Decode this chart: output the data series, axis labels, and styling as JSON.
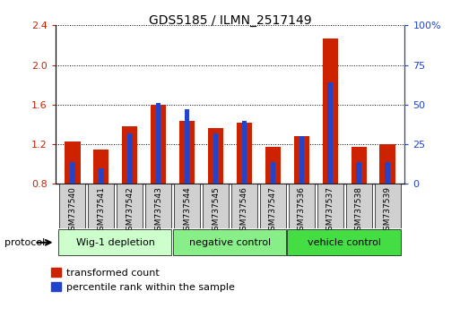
{
  "title": "GDS5185 / ILMN_2517149",
  "samples": [
    "GSM737540",
    "GSM737541",
    "GSM737542",
    "GSM737543",
    "GSM737544",
    "GSM737545",
    "GSM737546",
    "GSM737547",
    "GSM737536",
    "GSM737537",
    "GSM737538",
    "GSM737539"
  ],
  "transformed_count": [
    1.23,
    1.15,
    1.38,
    1.6,
    1.44,
    1.36,
    1.42,
    1.17,
    1.28,
    2.27,
    1.17,
    1.2
  ],
  "percentile_rank_pct": [
    14,
    10,
    32,
    51,
    47,
    32,
    40,
    14,
    30,
    64,
    14,
    14
  ],
  "groups": [
    {
      "label": "Wig-1 depletion",
      "start": 0,
      "end": 4,
      "color": "#ccffcc"
    },
    {
      "label": "negative control",
      "start": 4,
      "end": 8,
      "color": "#88ee88"
    },
    {
      "label": "vehicle control",
      "start": 8,
      "end": 12,
      "color": "#44dd44"
    }
  ],
  "ylim_left": [
    0.8,
    2.4
  ],
  "ylim_right": [
    0,
    100
  ],
  "yticks_left": [
    0.8,
    1.2,
    1.6,
    2.0,
    2.4
  ],
  "yticks_right": [
    0,
    25,
    50,
    75,
    100
  ],
  "bar_color_red": "#cc2200",
  "bar_color_blue": "#2244cc",
  "bar_width": 0.55,
  "blue_bar_width": 0.18,
  "baseline": 0.8
}
